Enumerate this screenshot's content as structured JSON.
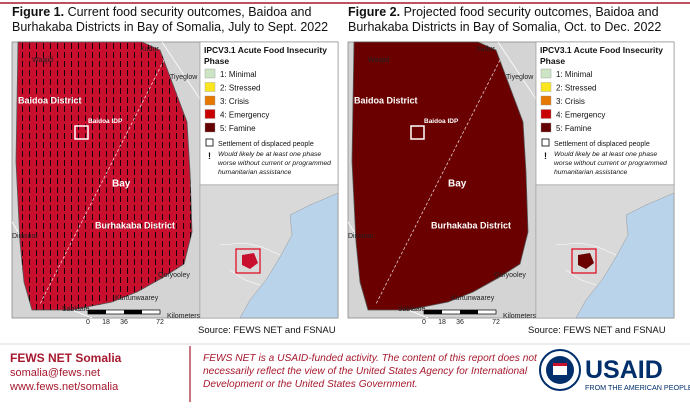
{
  "figures": [
    {
      "label": "Figure 1.",
      "title_lines": [
        "Current food security outcomes, Baidoa and",
        "Burhakaba Districts in Bay of Somalia, July to Sept. 2022"
      ],
      "fill": "#c8102e",
      "hatched": true,
      "map_labels": [
        "Xudur",
        "Waajid",
        "Tiyeglow",
        "Baidoa District",
        "Baidoa IDP",
        "Bay",
        "Burhakaba District",
        "Diinsoor",
        "Qoryooley",
        "Kurtunwaarey",
        "Sablaale"
      ],
      "scale": [
        "0",
        "18",
        "36",
        "72"
      ],
      "scale_unit": "Kilometers",
      "source": "Source: FEWS NET and FSNAU"
    },
    {
      "label": "Figure 2.",
      "title_lines": [
        "Projected food security outcomes, Baidoa and",
        "Burhakaba Districts in Bay of Somalia, Oct. to Dec. 2022"
      ],
      "fill": "#6b0000",
      "hatched": false,
      "map_labels": [
        "Xudur",
        "Waajid",
        "Tiyeglow",
        "Baidoa District",
        "Baidoa IDP",
        "Bay",
        "Burhakaba District",
        "Diinsoor",
        "Qoryooley",
        "Kurtunwaarey",
        "Sablaale"
      ],
      "scale": [
        "0",
        "18",
        "36",
        "72"
      ],
      "scale_unit": "Kilometers",
      "source": "Source: FEWS NET and FSNAU"
    }
  ],
  "legend": {
    "title_lines": [
      "IPCV3.1 Acute Food Insecurity",
      "Phase"
    ],
    "items": [
      {
        "label": "1: Minimal",
        "color": "#cde5c4"
      },
      {
        "label": "2: Stressed",
        "color": "#fae61e"
      },
      {
        "label": "3: Crisis",
        "color": "#e67800"
      },
      {
        "label": "4: Emergency",
        "color": "#c80000"
      },
      {
        "label": "5: Famine",
        "color": "#640000"
      }
    ],
    "settlement": "Settlement of displaced people",
    "note_symbol": "!",
    "note_lines": [
      "Would likely be at least one phase",
      "worse without current or programmed",
      "humanitarian assistance"
    ]
  },
  "footer": {
    "org": "FEWS NET Somalia",
    "email": "somalia@fews.net",
    "url": "www.fews.net/somalia",
    "disclaimer_lines": [
      "FEWS NET is a USAID-funded activity. The content of this report does not",
      "necessarily reflect the view of the United States Agency for International",
      "Development or the United States Government."
    ],
    "logo_text": "USAID",
    "logo_tagline": "FROM THE AMERICAN PEOPLE"
  }
}
